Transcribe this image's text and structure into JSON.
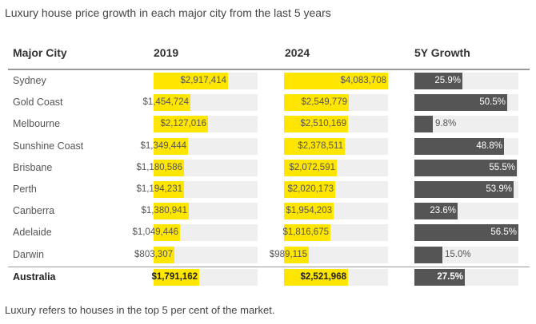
{
  "title": "Luxury house price growth in each major city from the last 5 years",
  "footnote": "Luxury refers to houses in the top 5 per cent of the market.",
  "headers": {
    "city": "Major City",
    "y2019": "2019",
    "y2024": "2024",
    "growth": "5Y Growth"
  },
  "colors": {
    "price_bar": "#ffe600",
    "growth_bar": "#555555",
    "track": "#efefef"
  },
  "chart_data": {
    "type": "table",
    "scale_max_price": 4083708,
    "scale_max_growth_pct": 56.5,
    "rows": [
      {
        "city": "Sydney",
        "v2019": 2917414,
        "v2019_label": "$2,917,414",
        "v2024": 4083708,
        "v2024_label": "$4,083,708",
        "growth": 25.9,
        "growth_label": "25.9%"
      },
      {
        "city": "Gold Coast",
        "v2019": 1454724,
        "v2019_label": "$1,454,724",
        "v2024": 2549779,
        "v2024_label": "$2,549,779",
        "growth": 50.5,
        "growth_label": "50.5%"
      },
      {
        "city": "Melbourne",
        "v2019": 2127016,
        "v2019_label": "$2,127,016",
        "v2024": 2510169,
        "v2024_label": "$2,510,169",
        "growth": 9.8,
        "growth_label": "9.8%"
      },
      {
        "city": "Sunshine Coast",
        "v2019": 1349444,
        "v2019_label": "$1,349,444",
        "v2024": 2378511,
        "v2024_label": "$2,378,511",
        "growth": 48.8,
        "growth_label": "48.8%"
      },
      {
        "city": "Brisbane",
        "v2019": 1180586,
        "v2019_label": "$1,180,586",
        "v2024": 2072591,
        "v2024_label": "$2,072,591",
        "growth": 55.5,
        "growth_label": "55.5%"
      },
      {
        "city": "Perth",
        "v2019": 1194231,
        "v2019_label": "$1,194,231",
        "v2024": 2020173,
        "v2024_label": "$2,020,173",
        "growth": 53.9,
        "growth_label": "53.9%"
      },
      {
        "city": "Canberra",
        "v2019": 1380941,
        "v2019_label": "$1,380,941",
        "v2024": 1954203,
        "v2024_label": "$1,954,203",
        "growth": 23.6,
        "growth_label": "23.6%"
      },
      {
        "city": "Adelaide",
        "v2019": 1049446,
        "v2019_label": "$1,049,446",
        "v2024": 1816675,
        "v2024_label": "$1,816,675",
        "growth": 56.5,
        "growth_label": "56.5%"
      },
      {
        "city": "Darwin",
        "v2019": 803307,
        "v2019_label": "$803,307",
        "v2024": 989115,
        "v2024_label": "$989,115",
        "growth": 15.0,
        "growth_label": "15.0%"
      }
    ],
    "total": {
      "city": "Australia",
      "v2019": 1791162,
      "v2019_label": "$1,791,162",
      "v2024": 2521968,
      "v2024_label": "$2,521,968",
      "growth": 27.5,
      "growth_label": "27.5%"
    }
  }
}
